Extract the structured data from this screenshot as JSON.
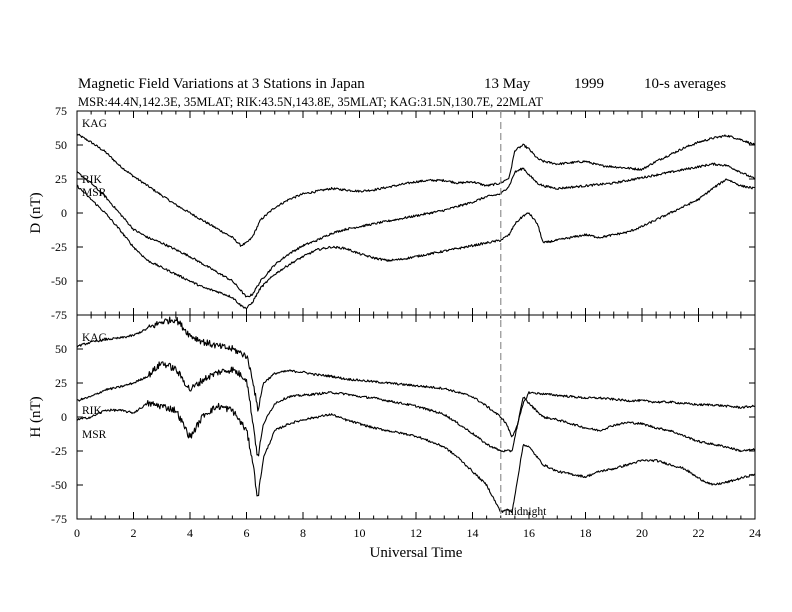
{
  "header": {
    "title": "Magnetic Field Variations at 3 Stations in Japan",
    "date": "13 May",
    "year": "1999",
    "averaging": "10-s averages",
    "subtitle": "MSR:44.4N,142.3E, 35MLAT;   RIK:43.5N,143.8E, 35MLAT;   KAG:31.5N,130.7E, 22MLAT"
  },
  "chart_data": [
    {
      "type": "line",
      "panel": "D",
      "ylabel": "D (nT)",
      "xlabel": "",
      "xlim": [
        0,
        24
      ],
      "ylim": [
        -75,
        75
      ],
      "yticks": [
        "75",
        "50",
        "25",
        "0",
        "-25",
        "-50",
        "-75"
      ],
      "color": "#000000",
      "series": [
        {
          "name": "KAG",
          "x": [
            0,
            0.5,
            1,
            1.5,
            2,
            2.5,
            3,
            3.5,
            4,
            4.5,
            5,
            5.5,
            5.8,
            6,
            6.2,
            6.5,
            7,
            7.5,
            8,
            8.5,
            9,
            9.5,
            10,
            10.5,
            11,
            11.5,
            12,
            12.5,
            13,
            13.5,
            14,
            14.5,
            15,
            15.3,
            15.5,
            15.8,
            16,
            16.3,
            16.5,
            17,
            17.5,
            18,
            18.5,
            19,
            19.5,
            20,
            20.5,
            21,
            21.5,
            22,
            22.5,
            23,
            23.5,
            24
          ],
          "values": [
            58,
            52,
            45,
            35,
            27,
            20,
            13,
            6,
            0,
            -6,
            -12,
            -18,
            -24,
            -22,
            -18,
            -5,
            4,
            10,
            14,
            16,
            18,
            17,
            16,
            17,
            19,
            21,
            23,
            24,
            24,
            22,
            23,
            20,
            22,
            26,
            46,
            50,
            47,
            40,
            38,
            36,
            37,
            38,
            35,
            34,
            33,
            32,
            38,
            43,
            48,
            52,
            55,
            57,
            54,
            50
          ]
        },
        {
          "name": "RIK",
          "x": [
            0,
            0.5,
            1,
            1.5,
            2,
            2.5,
            3,
            3.5,
            4,
            4.5,
            5,
            5.5,
            5.8,
            6,
            6.2,
            6.5,
            7,
            7.5,
            8,
            8.5,
            9,
            9.5,
            10,
            10.5,
            11,
            11.5,
            12,
            12.5,
            13,
            13.5,
            14,
            14.5,
            15,
            15.3,
            15.5,
            15.8,
            16,
            16.3,
            16.5,
            17,
            17.5,
            18,
            18.5,
            19,
            19.5,
            20,
            20.5,
            21,
            21.5,
            22,
            22.5,
            23,
            23.5,
            24
          ],
          "values": [
            30,
            22,
            12,
            0,
            -12,
            -18,
            -22,
            -27,
            -32,
            -38,
            -44,
            -50,
            -57,
            -62,
            -60,
            -50,
            -38,
            -30,
            -24,
            -20,
            -15,
            -12,
            -10,
            -8,
            -6,
            -4,
            -2,
            0,
            2,
            5,
            8,
            12,
            14,
            20,
            30,
            33,
            28,
            22,
            20,
            18,
            19,
            20,
            21,
            22,
            24,
            26,
            28,
            30,
            32,
            34,
            36,
            35,
            30,
            25
          ]
        },
        {
          "name": "MSR",
          "x": [
            0,
            0.5,
            1,
            1.5,
            2,
            2.5,
            3,
            3.5,
            4,
            4.5,
            5,
            5.5,
            5.8,
            6,
            6.2,
            6.5,
            7,
            7.5,
            8,
            8.5,
            9,
            9.5,
            10,
            10.5,
            11,
            11.5,
            12,
            12.5,
            13,
            13.5,
            14,
            14.5,
            15,
            15.3,
            15.5,
            15.8,
            16,
            16.3,
            16.5,
            17,
            17.5,
            18,
            18.5,
            19,
            19.5,
            20,
            20.5,
            21,
            21.5,
            22,
            22.5,
            23,
            23.5,
            24
          ],
          "values": [
            20,
            10,
            0,
            -12,
            -25,
            -35,
            -40,
            -45,
            -50,
            -55,
            -58,
            -62,
            -68,
            -70,
            -66,
            -55,
            -45,
            -38,
            -32,
            -27,
            -25,
            -26,
            -30,
            -33,
            -35,
            -34,
            -32,
            -30,
            -28,
            -26,
            -24,
            -22,
            -20,
            -16,
            -8,
            -2,
            0,
            -8,
            -22,
            -20,
            -18,
            -16,
            -18,
            -16,
            -14,
            -10,
            -5,
            0,
            5,
            10,
            18,
            25,
            20,
            18
          ]
        }
      ]
    },
    {
      "type": "line",
      "panel": "H",
      "ylabel": "H (nT)",
      "xlabel": "Universal Time",
      "xlim": [
        0,
        24
      ],
      "ylim": [
        -75,
        75
      ],
      "yticks": [
        "50",
        "25",
        "0",
        "-25",
        "-50",
        "-75"
      ],
      "xticks": [
        "0",
        "2",
        "4",
        "6",
        "8",
        "10",
        "12",
        "14",
        "16",
        "18",
        "20",
        "22",
        "24"
      ],
      "color": "#000000",
      "series": [
        {
          "name": "KAG",
          "x": [
            0,
            0.5,
            1,
            1.5,
            2,
            2.5,
            3,
            3.5,
            4,
            4.5,
            5,
            5.5,
            6,
            6.2,
            6.4,
            6.6,
            7,
            7.5,
            8,
            8.5,
            9,
            9.5,
            10,
            10.5,
            11,
            11.5,
            12,
            12.5,
            13,
            13.5,
            14,
            14.5,
            15,
            15.2,
            15.4,
            15.6,
            15.8,
            16,
            16.5,
            17,
            17.5,
            18,
            18.5,
            19,
            19.5,
            20,
            20.5,
            21,
            21.5,
            22,
            22.5,
            23,
            23.5,
            24
          ],
          "values": [
            52,
            55,
            57,
            58,
            60,
            65,
            70,
            72,
            60,
            55,
            52,
            50,
            45,
            30,
            5,
            25,
            32,
            34,
            33,
            31,
            30,
            28,
            27,
            26,
            25,
            24,
            23,
            22,
            21,
            18,
            15,
            8,
            0,
            -5,
            -15,
            -5,
            10,
            18,
            17,
            16,
            15,
            14,
            14,
            13,
            12,
            12,
            11,
            11,
            10,
            9,
            9,
            8,
            7,
            8
          ]
        },
        {
          "name": "RIK",
          "x": [
            0,
            0.5,
            1,
            1.5,
            2,
            2.5,
            3,
            3.5,
            4,
            4.5,
            5,
            5.5,
            6,
            6.2,
            6.4,
            6.6,
            7,
            7.5,
            8,
            8.5,
            9,
            9.5,
            10,
            10.5,
            11,
            11.5,
            12,
            12.5,
            13,
            13.5,
            14,
            14.5,
            15,
            15.2,
            15.4,
            15.6,
            15.8,
            16,
            16.5,
            17,
            17.5,
            18,
            18.5,
            19,
            19.5,
            20,
            20.5,
            21,
            21.5,
            22,
            22.5,
            23,
            23.5,
            24
          ],
          "values": [
            12,
            15,
            20,
            22,
            25,
            30,
            40,
            35,
            20,
            28,
            33,
            35,
            28,
            0,
            -30,
            -5,
            10,
            15,
            16,
            17,
            18,
            17,
            15,
            14,
            12,
            10,
            8,
            5,
            2,
            -5,
            -12,
            -20,
            -25,
            -25,
            -25,
            -5,
            15,
            10,
            0,
            -2,
            -5,
            -8,
            -10,
            -6,
            -4,
            -5,
            -8,
            -10,
            -14,
            -18,
            -20,
            -22,
            -25,
            -24
          ]
        },
        {
          "name": "MSR",
          "x": [
            0,
            0.5,
            1,
            1.5,
            2,
            2.5,
            3,
            3.5,
            4,
            4.5,
            5,
            5.5,
            6,
            6.2,
            6.4,
            6.6,
            7,
            7.5,
            8,
            8.5,
            9,
            9.5,
            10,
            10.5,
            11,
            11.5,
            12,
            12.5,
            13,
            13.5,
            14,
            14.5,
            15,
            15.2,
            15.4,
            15.6,
            15.8,
            16,
            16.5,
            17,
            17.5,
            18,
            18.5,
            19,
            19.5,
            20,
            20.5,
            21,
            21.5,
            22,
            22.5,
            23,
            23.5,
            24
          ],
          "values": [
            -2,
            0,
            5,
            5,
            3,
            10,
            8,
            5,
            -15,
            2,
            8,
            5,
            -10,
            -30,
            -60,
            -30,
            -10,
            -5,
            -2,
            0,
            2,
            -2,
            -5,
            -8,
            -10,
            -12,
            -14,
            -18,
            -22,
            -30,
            -40,
            -50,
            -70,
            -68,
            -70,
            -45,
            -20,
            -22,
            -35,
            -40,
            -42,
            -44,
            -40,
            -38,
            -35,
            -32,
            -32,
            -35,
            -38,
            -45,
            -50,
            -48,
            -45,
            -42
          ]
        }
      ],
      "annotations": [
        "midnight"
      ]
    }
  ],
  "markers": {
    "midnight_ut": 15,
    "midnight_label": "midnight"
  }
}
